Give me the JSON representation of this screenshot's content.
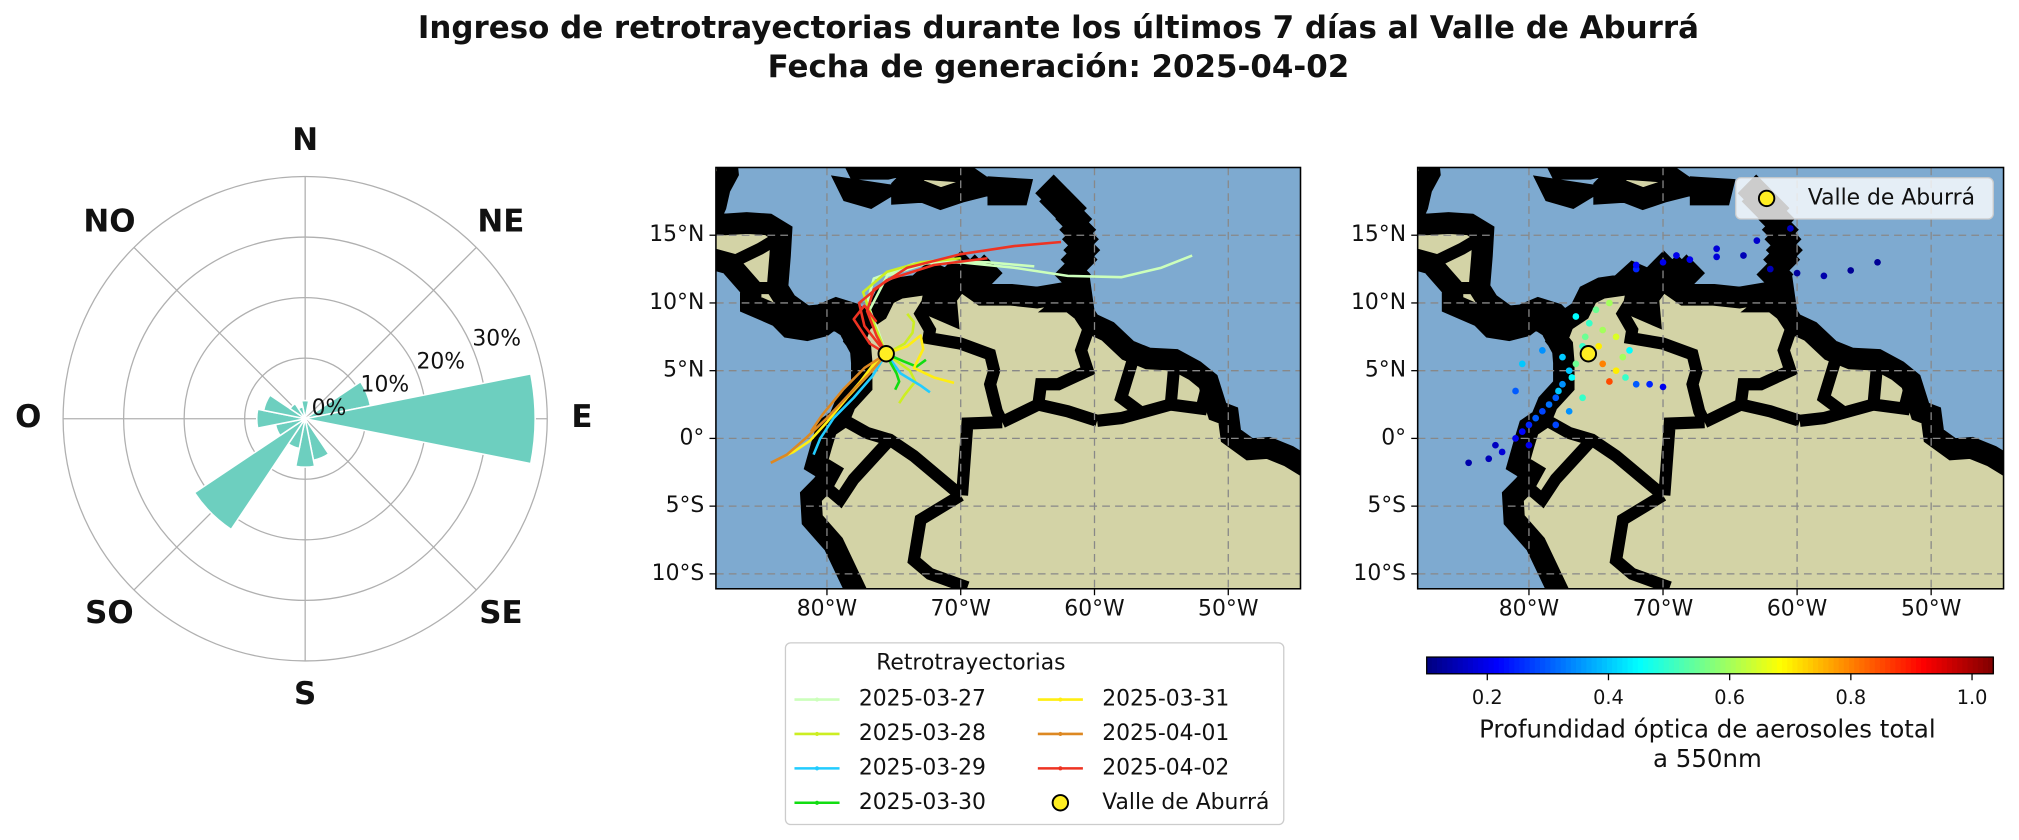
{
  "title": "Ingreso de retrotrayectorias durante los últimos 7 días al Valle de Aburrá",
  "subtitle": "Fecha de generación: 2025-04-02",
  "chart_data": [
    {
      "type": "polar_bar",
      "direction_labels": [
        "N",
        "NE",
        "E",
        "SE",
        "S",
        "SO",
        "O",
        "NO"
      ],
      "theta": [
        0,
        22.5,
        45,
        67.5,
        90,
        112.5,
        135,
        157.5,
        180,
        202.5,
        225,
        247.5,
        270,
        292.5,
        315,
        337.5
      ],
      "values": [
        3,
        0,
        0,
        11,
        38,
        0,
        0,
        7,
        8,
        5,
        22,
        5,
        8,
        7,
        3,
        2
      ],
      "color": "#6dcfbf",
      "ylim": [
        0,
        40
      ],
      "yticks": [
        {
          "value": 0,
          "label": "0%"
        },
        {
          "value": 10,
          "label": "10%"
        },
        {
          "value": 20,
          "label": "20%"
        },
        {
          "value": 30,
          "label": "30%"
        }
      ],
      "grid": true
    },
    {
      "type": "trajectory_map",
      "xlim": [
        -88.3,
        -44.6
      ],
      "ylim": [
        -11.1,
        20
      ],
      "xticks": [
        {
          "value": -80,
          "label": "80°W"
        },
        {
          "value": -70,
          "label": "70°W"
        },
        {
          "value": -60,
          "label": "60°W"
        },
        {
          "value": -50,
          "label": "50°W"
        }
      ],
      "yticks": [
        {
          "value": -10,
          "label": "10°S"
        },
        {
          "value": -5,
          "label": "5°S"
        },
        {
          "value": 0,
          "label": "0°"
        },
        {
          "value": 5,
          "label": "5°N"
        },
        {
          "value": 10,
          "label": "10°N"
        },
        {
          "value": 15,
          "label": "15°N"
        }
      ],
      "grid": true,
      "legend": {
        "title": "Retrotrayectorias",
        "position": "lower center"
      },
      "site": {
        "name": "Valle de Aburrá",
        "lon": -75.57,
        "lat": 6.25,
        "color": "#ffee22"
      },
      "series": [
        {
          "name": "2025-03-27",
          "color": "#ccffbb",
          "trajectories": [
            {
              "lon": [
                -75.57,
                -76.2,
                -77,
                -76.5,
                -73.5,
                -70,
                -66,
                -62,
                -58,
                -55,
                -52.7
              ],
              "lat": [
                6.25,
                8,
                10,
                11.8,
                12.9,
                13,
                12.6,
                12,
                11.9,
                12.6,
                13.5
              ]
            },
            {
              "lon": [
                -75.57,
                -76.8,
                -75.5,
                -72,
                -68,
                -64.5
              ],
              "lat": [
                6.25,
                9.5,
                12,
                13.1,
                13,
                12.7
              ]
            }
          ]
        },
        {
          "name": "2025-03-28",
          "color": "#ccee22",
          "trajectories": [
            {
              "lon": [
                -75.57,
                -74.5,
                -73.8,
                -73.4,
                -74.2,
                -74.6
              ],
              "lat": [
                6.25,
                5.5,
                5,
                4.2,
                3.2,
                2.6
              ]
            },
            {
              "lon": [
                -75.57,
                -74.2,
                -73.6,
                -73.5,
                -74
              ],
              "lat": [
                6.25,
                7,
                7.8,
                8.6,
                9.2
              ]
            },
            {
              "lon": [
                -75.57,
                -76.5,
                -77.3,
                -75.5,
                -73,
                -70
              ],
              "lat": [
                6.25,
                8.5,
                10.8,
                12.3,
                13,
                13.3
              ]
            }
          ]
        },
        {
          "name": "2025-03-29",
          "color": "#22ccff",
          "trajectories": [
            {
              "lon": [
                -75.57,
                -74.5,
                -73,
                -72.3
              ],
              "lat": [
                6.25,
                4.8,
                3.9,
                3.4
              ]
            },
            {
              "lon": [
                -75.57,
                -76.6,
                -78,
                -79.5,
                -80.5,
                -81
              ],
              "lat": [
                6.25,
                4.6,
                3,
                1.5,
                0,
                -1.2
              ]
            }
          ]
        },
        {
          "name": "2025-03-30",
          "color": "#11dd11",
          "trajectories": [
            {
              "lon": [
                -75.57,
                -75.2,
                -74.8,
                -74.6,
                -74.9
              ],
              "lat": [
                6.25,
                5.5,
                4.8,
                4.2,
                3.6
              ]
            },
            {
              "lon": [
                -75.57,
                -74.3,
                -73.3,
                -72.6
              ],
              "lat": [
                6.25,
                5.7,
                5.3,
                5.8
              ]
            }
          ]
        },
        {
          "name": "2025-03-31",
          "color": "#ffee11",
          "trajectories": [
            {
              "lon": [
                -75.57,
                -77,
                -78.5,
                -80,
                -81.3,
                -82.5,
                -83.4
              ],
              "lat": [
                6.25,
                4.6,
                3,
                1.2,
                -0.2,
                -1,
                -1.4
              ]
            },
            {
              "lon": [
                -75.57,
                -74,
                -73,
                -72.8,
                -73.5,
                -72,
                -70.5
              ],
              "lat": [
                6.25,
                6.8,
                7.6,
                6.6,
                5.2,
                4.5,
                4.1
              ]
            },
            {
              "lon": [
                -75.57,
                -76.5,
                -77.5,
                -78.2
              ],
              "lat": [
                6.25,
                5.5,
                4.2,
                3.4
              ]
            }
          ]
        },
        {
          "name": "2025-04-01",
          "color": "#dd8822",
          "trajectories": [
            {
              "lon": [
                -75.57,
                -76.8,
                -78.3,
                -80,
                -81.6,
                -83,
                -84.2
              ],
              "lat": [
                6.25,
                4.8,
                3.3,
                1.5,
                0,
                -1.2,
                -1.8
              ]
            },
            {
              "lon": [
                -75.57,
                -77.2,
                -78.8,
                -80.3,
                -81.2
              ],
              "lat": [
                6.25,
                5.2,
                3.6,
                1.8,
                0.5
              ]
            }
          ]
        },
        {
          "name": "2025-04-02",
          "color": "#ee3322",
          "trajectories": [
            {
              "lon": [
                -75.57,
                -76.3,
                -77,
                -76.5,
                -74,
                -70,
                -66,
                -62.5
              ],
              "lat": [
                6.25,
                7.6,
                9.4,
                11,
                12.6,
                13.6,
                14.2,
                14.5
              ]
            },
            {
              "lon": [
                -75.57,
                -77.2,
                -77.6,
                -75.5,
                -72,
                -68
              ],
              "lat": [
                6.25,
                8.3,
                10,
                11.7,
                12.8,
                13.3
              ]
            },
            {
              "lon": [
                -75.57,
                -76.8,
                -78,
                -77.2,
                -76.3
              ],
              "lat": [
                6.25,
                7,
                8.8,
                9.8,
                8.6
              ]
            }
          ]
        }
      ]
    },
    {
      "type": "scatter_map",
      "xlim": [
        -88.3,
        -44.6
      ],
      "ylim": [
        -11.1,
        20
      ],
      "xticks": [
        {
          "value": -80,
          "label": "80°W"
        },
        {
          "value": -70,
          "label": "70°W"
        },
        {
          "value": -60,
          "label": "60°W"
        },
        {
          "value": -50,
          "label": "50°W"
        }
      ],
      "yticks": [
        {
          "value": -10,
          "label": "10°S"
        },
        {
          "value": -5,
          "label": "5°S"
        },
        {
          "value": 0,
          "label": "0°"
        },
        {
          "value": 5,
          "label": "5°N"
        },
        {
          "value": 10,
          "label": "10°N"
        },
        {
          "value": 15,
          "label": "15°N"
        }
      ],
      "grid": true,
      "legend": {
        "position": "upper right"
      },
      "site": {
        "name": "Valle de Aburrá",
        "lon": -75.57,
        "lat": 6.25,
        "color": "#ffee22"
      },
      "x": [
        -72,
        -70,
        -68,
        -66,
        -64,
        -62,
        -60,
        -58,
        -56,
        -54,
        -72,
        -69,
        -66,
        -63,
        -60.5,
        -75,
        -74,
        -75.5,
        -76.5,
        -74.5,
        -73.5,
        -75.8,
        -76,
        -74.8,
        -74.5,
        -73.5,
        -74,
        -72.8,
        -72,
        -71,
        -70,
        -73,
        -72.5,
        -77,
        -77.5,
        -78,
        -79,
        -80,
        -81,
        -82,
        -83,
        -84.5,
        -82.5,
        -80.5,
        -79.5,
        -78.5,
        -77.8,
        -76.8,
        -80,
        -78,
        -77,
        -76,
        -76.5,
        -77.5,
        -80.5,
        -79,
        -81
      ],
      "y": [
        12.5,
        13,
        13.2,
        13.4,
        13.5,
        12.5,
        12.2,
        12,
        12.4,
        13,
        12.8,
        13.5,
        14,
        14.6,
        15.5,
        9.5,
        10,
        8.5,
        9,
        8,
        7.5,
        7.5,
        6.8,
        6.8,
        5.5,
        5,
        4.2,
        4.5,
        4,
        4,
        3.8,
        6,
        6.5,
        5,
        4,
        3,
        2,
        1,
        0,
        -1,
        -1.5,
        -1.8,
        -0.5,
        0.5,
        1.5,
        2.5,
        3.5,
        4.5,
        -0.5,
        1,
        2,
        3,
        5.5,
        6,
        5.5,
        6.5,
        3.5
      ],
      "c": [
        0.25,
        0.2,
        0.2,
        0.18,
        0.15,
        0.15,
        0.13,
        0.14,
        0.12,
        0.12,
        0.22,
        0.2,
        0.18,
        0.17,
        0.16,
        0.55,
        0.6,
        0.5,
        0.45,
        0.6,
        0.65,
        0.55,
        0.5,
        0.7,
        0.8,
        0.7,
        0.85,
        0.5,
        0.3,
        0.25,
        0.2,
        0.6,
        0.45,
        0.4,
        0.35,
        0.3,
        0.28,
        0.25,
        0.2,
        0.18,
        0.15,
        0.14,
        0.16,
        0.22,
        0.3,
        0.32,
        0.4,
        0.45,
        0.2,
        0.28,
        0.35,
        0.5,
        0.55,
        0.4,
        0.4,
        0.35,
        0.3
      ],
      "colormap": "jet",
      "clim": [
        0.1,
        1.035
      ],
      "colorbar": {
        "ticks": [
          0.2,
          0.4,
          0.6,
          0.8,
          {
            "value": 1,
            "label": "1.0"
          }
        ],
        "label": [
          "Profundidad óptica de aerosoles total",
          "a 550nm"
        ]
      }
    }
  ]
}
